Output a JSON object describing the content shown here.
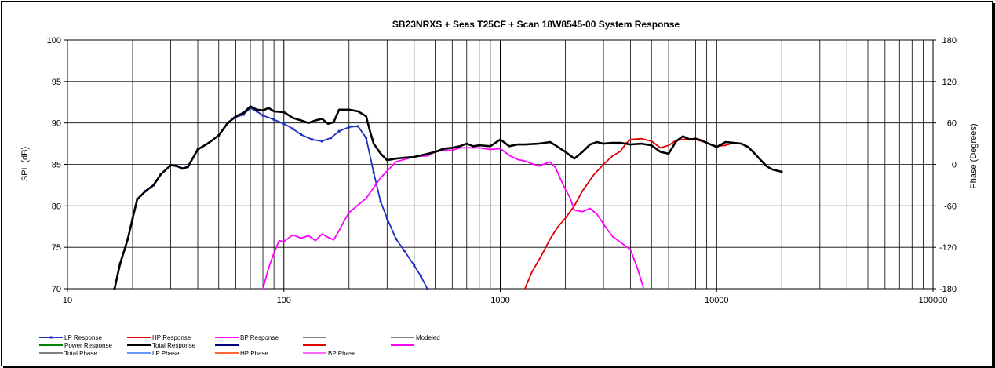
{
  "chart_data": {
    "type": "line",
    "title": "SB23NRXS + Seas T25CF + Scan 18W8545-00   System Response",
    "xlabel": "",
    "ylabel": "SPL (dB)",
    "y2label": "Phase (Degrees)",
    "xscale": "log",
    "xlim": [
      10,
      100000
    ],
    "ylim": [
      70,
      100
    ],
    "y2lim": [
      -180,
      180
    ],
    "grid": true,
    "x_ticks": [
      "10",
      "100",
      "1000",
      "10000",
      "100000"
    ],
    "y_ticks": [
      "70",
      "75",
      "80",
      "85",
      "90",
      "95",
      "100"
    ],
    "y2_ticks": [
      "-180",
      "-120",
      "-60",
      "0",
      "60",
      "120",
      "180"
    ],
    "legend_position": "bottom",
    "legend": [
      {
        "label": "LP Response",
        "color": "#1f2fbf",
        "marker": true
      },
      {
        "label": "HP Response",
        "color": "#e00000",
        "marker": false
      },
      {
        "label": "BP Response",
        "color": "#ff00ff",
        "marker": false
      },
      {
        "label": "",
        "color": "#808080",
        "marker": false
      },
      {
        "label": "Modeled",
        "color": "#808080",
        "marker": false
      },
      {
        "label": "Power Response",
        "color": "#008000",
        "marker": false
      },
      {
        "label": "Total Response",
        "color": "#000000",
        "marker": false
      },
      {
        "label": "",
        "color": "#000080",
        "marker": false
      },
      {
        "label": "",
        "color": "#e00000",
        "marker": false
      },
      {
        "label": "",
        "color": "#ff00ff",
        "marker": false
      },
      {
        "label": "Total Phase",
        "color": "#808080",
        "marker": false
      },
      {
        "label": "LP Phase",
        "color": "#6699ff",
        "marker": false
      },
      {
        "label": "HP Phase",
        "color": "#ff6633",
        "marker": false
      },
      {
        "label": "BP Phase",
        "color": "#ff66ff",
        "marker": false
      }
    ],
    "series": [
      {
        "name": "LP Response",
        "color": "#1f2fbf",
        "width": 1.8,
        "marker": true,
        "x": [
          16.5,
          17.5,
          19,
          20,
          21,
          23,
          25,
          27,
          30,
          32,
          34,
          36,
          40,
          45,
          50,
          55,
          60,
          65,
          70,
          75,
          80,
          90,
          100,
          110,
          120,
          135,
          150,
          165,
          180,
          200,
          220,
          240,
          260,
          280,
          300,
          330,
          360,
          400,
          430,
          460
        ],
        "y": [
          70,
          73,
          76,
          78.5,
          80.8,
          81.8,
          82.5,
          83.8,
          84.9,
          84.8,
          84.5,
          84.7,
          86.8,
          87.6,
          88.5,
          90,
          90.7,
          91,
          91.8,
          91.4,
          90.9,
          90.4,
          89.9,
          89.3,
          88.6,
          88,
          87.8,
          88.2,
          89,
          89.5,
          89.6,
          88.2,
          84,
          80.5,
          78.5,
          76,
          74.6,
          72.8,
          71.5,
          70
        ]
      },
      {
        "name": "HP Response",
        "color": "#e00000",
        "width": 1.8,
        "marker": false,
        "x": [
          1300,
          1400,
          1550,
          1700,
          1850,
          2000,
          2200,
          2400,
          2700,
          3000,
          3300,
          3600,
          3800,
          4000,
          4500,
          5000,
          5500,
          6000,
          6500,
          7000,
          7500,
          8000,
          8500,
          9000,
          10000,
          11000,
          12000,
          13000,
          14000,
          15000,
          16000,
          17000,
          18000,
          20000
        ],
        "y": [
          70,
          72,
          74,
          76,
          77.5,
          78.5,
          80,
          81.8,
          83.7,
          85,
          86,
          86.6,
          87.5,
          88,
          88.1,
          87.8,
          87,
          87.3,
          87.9,
          88,
          88.1,
          88,
          87.8,
          87.6,
          87.2,
          87.3,
          87.6,
          87.5,
          87.1,
          86.3,
          85.5,
          84.8,
          84.4,
          84.1
        ]
      },
      {
        "name": "BP Response",
        "color": "#ff00ff",
        "width": 1.8,
        "marker": false,
        "x": [
          80,
          85,
          90,
          95,
          100,
          110,
          120,
          130,
          140,
          150,
          160,
          170,
          180,
          190,
          200,
          220,
          240,
          260,
          280,
          300,
          330,
          360,
          400,
          430,
          460,
          500,
          550,
          600,
          650,
          700,
          800,
          900,
          1000,
          1100,
          1200,
          1300,
          1500,
          1700,
          1800,
          1900,
          2000,
          2100,
          2200,
          2400,
          2600,
          2800,
          3000,
          3300,
          3600,
          4000,
          4300,
          4600
        ],
        "y": [
          70,
          72.5,
          74.3,
          75.8,
          75.7,
          76.5,
          76.1,
          76.4,
          75.8,
          76.6,
          76.2,
          75.9,
          77,
          78.2,
          79.2,
          80.1,
          80.9,
          82.2,
          83.4,
          84.2,
          85.3,
          85.6,
          85.9,
          86,
          86,
          86.5,
          86.7,
          86.7,
          87,
          87,
          87,
          86.8,
          86.9,
          86.1,
          85.6,
          85.4,
          84.8,
          85.3,
          84.6,
          83.2,
          82,
          81,
          79.5,
          79.3,
          79.7,
          79,
          77.8,
          76.3,
          75.6,
          74.7,
          72.5,
          70
        ]
      },
      {
        "name": "Total Response",
        "color": "#000000",
        "width": 2.6,
        "marker": false,
        "x": [
          16.5,
          17.5,
          19,
          20,
          21,
          23,
          25,
          27,
          30,
          32,
          34,
          36,
          40,
          45,
          50,
          55,
          60,
          65,
          70,
          75,
          80,
          85,
          90,
          100,
          110,
          120,
          130,
          140,
          150,
          160,
          170,
          180,
          200,
          220,
          240,
          250,
          260,
          280,
          300,
          330,
          360,
          400,
          450,
          500,
          550,
          600,
          650,
          700,
          750,
          800,
          900,
          1000,
          1050,
          1100,
          1200,
          1300,
          1500,
          1700,
          1800,
          2000,
          2200,
          2400,
          2600,
          2800,
          3000,
          3300,
          3600,
          4000,
          4500,
          5000,
          5500,
          6000,
          6500,
          7000,
          7500,
          8000,
          8500,
          9000,
          10000,
          11000,
          12000,
          13000,
          14000,
          15000,
          16000,
          17000,
          18000,
          20000
        ],
        "y": [
          70,
          73,
          76,
          78.5,
          80.8,
          81.8,
          82.5,
          83.8,
          84.9,
          84.8,
          84.5,
          84.7,
          86.8,
          87.6,
          88.5,
          90,
          90.8,
          91.2,
          92,
          91.6,
          91.5,
          91.8,
          91.4,
          91.3,
          90.6,
          90.3,
          90,
          90.3,
          90.5,
          89.9,
          90.1,
          91.6,
          91.6,
          91.4,
          90.8,
          89,
          87.5,
          86.3,
          85.5,
          85.7,
          85.8,
          85.9,
          86.2,
          86.5,
          86.9,
          87,
          87.2,
          87.5,
          87.2,
          87.3,
          87.2,
          88,
          87.6,
          87.2,
          87.4,
          87.4,
          87.5,
          87.7,
          87.3,
          86.5,
          85.7,
          86.5,
          87.4,
          87.7,
          87.5,
          87.6,
          87.6,
          87.4,
          87.5,
          87.3,
          86.5,
          86.3,
          87.8,
          88.4,
          88,
          88.1,
          87.9,
          87.6,
          87.1,
          87.7,
          87.6,
          87.5,
          87.1,
          86.3,
          85.5,
          84.8,
          84.4,
          84.1
        ]
      }
    ]
  }
}
